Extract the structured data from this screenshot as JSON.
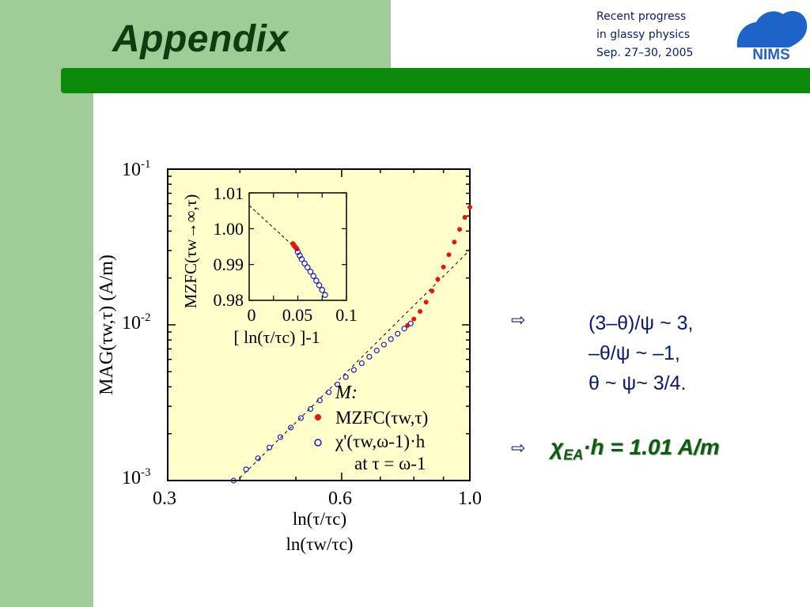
{
  "slide": {
    "title": "Appendix",
    "conference": [
      "Recent progress",
      "in glassy physics",
      "Sep. 27–30, 2005"
    ],
    "logo_text": "NIMS",
    "bullets": {
      "icon": "arrow-icon",
      "lines": [
        "(3–θ)/ψ ~ 3,",
        "–θ/ψ ~ –1,",
        "θ ~ ψ~ 3/4."
      ],
      "result_symbol": "χ",
      "result_subscript": "EA",
      "result_rest": "·h = 1.01 A/m"
    },
    "colors": {
      "accent_green": "#0b8a0b",
      "title_green": "#0f3d12",
      "text_navy": "#0b1a6e",
      "plot_bg": "#ffffcc",
      "zfc_red": "#ee1111",
      "chi_blue": "#1a1acc"
    }
  },
  "chart_data": [
    {
      "type": "scatter",
      "panel": "main",
      "xscale": "log",
      "yscale": "log",
      "xlim": [
        0.3,
        1.0
      ],
      "ylim": [
        0.001,
        0.1
      ],
      "xticks": [
        "0.3",
        "0.6",
        "1.0"
      ],
      "yticks": [
        "10",
        "10",
        "10"
      ],
      "ytick_exponents": [
        "-3",
        "-2",
        "-1"
      ],
      "xlabel_lines": [
        "ln(τ/τc)",
        "ln(τw/τc)"
      ],
      "ylabel": "MAG(τw,τ) (A/m)",
      "legend": {
        "header": "M:",
        "zfc": "MZFC(τw,τ)",
        "chi": "χ'(τw,ω-1)·h",
        "chi_note": "at τ = ω-1"
      },
      "series": [
        {
          "name": "MZFC(τw,τ)",
          "marker": "filled-circle",
          "color": "#ee1111",
          "x": [
            0.78,
            0.8,
            0.82,
            0.84,
            0.86,
            0.88,
            0.9,
            0.92,
            0.94,
            0.96,
            0.98,
            1.0
          ],
          "y": [
            0.0099,
            0.0109,
            0.0122,
            0.014,
            0.0165,
            0.0196,
            0.0235,
            0.0282,
            0.034,
            0.041,
            0.049,
            0.057
          ]
        },
        {
          "name": "χ'(τw,ω-1)·h",
          "marker": "open-circle",
          "color": "#1a1acc",
          "x": [
            0.39,
            0.41,
            0.43,
            0.45,
            0.47,
            0.49,
            0.51,
            0.53,
            0.55,
            0.57,
            0.59,
            0.61,
            0.63,
            0.65,
            0.67,
            0.69,
            0.71,
            0.73,
            0.75,
            0.77,
            0.79
          ],
          "y": [
            0.001,
            0.00118,
            0.00139,
            0.00163,
            0.0019,
            0.00219,
            0.00252,
            0.00288,
            0.00327,
            0.00369,
            0.00414,
            0.00462,
            0.00513,
            0.00567,
            0.00624,
            0.00684,
            0.00746,
            0.0081,
            0.00877,
            0.00946,
            0.0102
          ]
        }
      ],
      "fit_line": {
        "style": "dashed",
        "x": [
          0.4,
          1.0
        ],
        "y": [
          0.00104,
          0.0302
        ]
      }
    },
    {
      "type": "scatter",
      "panel": "inset",
      "xlim": [
        0,
        0.1
      ],
      "ylim": [
        0.98,
        1.01
      ],
      "xticks": [
        "0",
        "0.05",
        "0.1"
      ],
      "yticks": [
        "0.98",
        "0.99",
        "1.00",
        "1.01"
      ],
      "xlabel": "[ ln(τ/τc) ]-1",
      "ylabel": "MZFC(τw→∞,τ)",
      "series": [
        {
          "name": "MZFC",
          "marker": "filled-circle",
          "color": "#ee1111",
          "x": [
            0.045,
            0.046,
            0.047,
            0.048,
            0.049
          ],
          "y": [
            0.9958,
            0.9954,
            0.995,
            0.9947,
            0.9944
          ]
        },
        {
          "name": "χ'h",
          "marker": "open-circle",
          "color": "#1a1acc",
          "x": [
            0.05,
            0.052,
            0.054,
            0.057,
            0.06,
            0.063,
            0.066,
            0.069,
            0.072,
            0.075,
            0.078
          ],
          "y": [
            0.9935,
            0.9925,
            0.9915,
            0.9903,
            0.9892,
            0.988,
            0.9868,
            0.9855,
            0.9842,
            0.9829,
            0.9815
          ]
        }
      ],
      "fit_line": {
        "style": "dashed",
        "x": [
          0.0,
          0.05
        ],
        "y": [
          1.0065,
          0.994
        ]
      }
    }
  ]
}
